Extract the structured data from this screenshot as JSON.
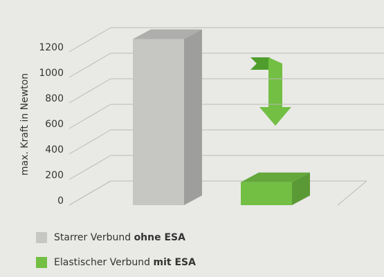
{
  "chart_data": {
    "type": "bar3d",
    "ylabel": "max. Kraft in Newton",
    "categories": [
      null,
      null
    ],
    "values": [
      1300,
      180
    ],
    "colors": [
      "#c6c6c3",
      "#72bf44"
    ],
    "legend": [
      "Starrer Verbund ohne ESA",
      "Elastischer Verbund mit ESA"
    ],
    "ylim": [
      0,
      1200
    ],
    "yticks": [
      0,
      200,
      400,
      600,
      800,
      1000,
      1200
    ],
    "grid": true
  }
}
